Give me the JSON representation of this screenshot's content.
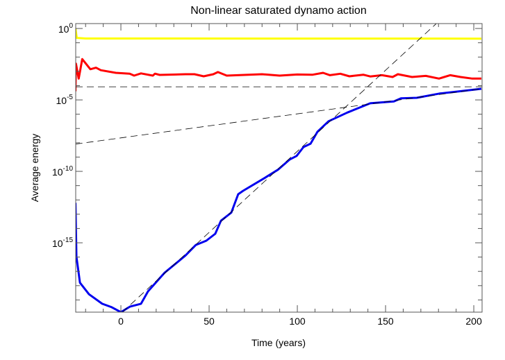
{
  "chart_data": {
    "type": "line",
    "title": "Non-linear saturated dynamo action",
    "xlabel": "Time (years)",
    "ylabel": "Average energy",
    "xlim": [
      -25.6,
      204.7
    ],
    "ylim": [
      1.4e-20,
      2.2
    ],
    "yscale": "log",
    "grid": false,
    "legend": "none",
    "x_ticks": [
      "0",
      "50",
      "100",
      "150",
      "200"
    ],
    "x_tick_values": [
      0,
      50,
      100,
      150,
      200
    ],
    "y_ticks": [
      {
        "value": 1,
        "base": "10",
        "exp": "0"
      },
      {
        "value": 1e-05,
        "base": "10",
        "exp": "-5"
      },
      {
        "value": 1e-10,
        "base": "10",
        "exp": "-10"
      },
      {
        "value": 1e-15,
        "base": "10",
        "exp": "-15"
      }
    ],
    "series": [
      {
        "color": "#ffff00",
        "style": "solid",
        "x": [
          -25.7,
          -25,
          -20,
          204.3
        ],
        "y": [
          1.0,
          0.22,
          0.2,
          0.195
        ]
      },
      {
        "color": "#ff0000",
        "style": "solid",
        "x": [
          -25.7,
          -25.5,
          -23.9,
          -21.9,
          -17.3,
          -14.1,
          -11.4,
          -2.9,
          5,
          7.5,
          11.4,
          18.1,
          19.3,
          22,
          36.6,
          41.7,
          46.9,
          52.4,
          55,
          60,
          70,
          80,
          90,
          100,
          108.7,
          114.6,
          118.5,
          124.4,
          129.5,
          137.4,
          141.3,
          148,
          154,
          157,
          165,
          172.8,
          180.3,
          186.6,
          192.5,
          199.2,
          204.3
        ],
        "y": [
          4e-05,
          0.0035,
          0.00031,
          0.0072,
          0.0014,
          0.0018,
          0.0012,
          0.00079,
          0.00069,
          0.0005,
          0.00072,
          0.0005,
          0.00069,
          0.00056,
          0.00063,
          0.00063,
          0.00045,
          0.00063,
          0.00089,
          0.0005,
          0.00056,
          0.00063,
          0.0005,
          0.0006,
          0.00058,
          0.00079,
          0.00054,
          0.00068,
          0.00045,
          0.00058,
          0.00044,
          0.00054,
          0.0004,
          0.00063,
          0.0004,
          0.00048,
          0.00031,
          0.00054,
          0.0004,
          0.00031,
          0.00031
        ]
      },
      {
        "color": "#0000ee",
        "style": "solid",
        "x": [
          -25.7,
          -25.2,
          -23.2,
          -18.1,
          -10.6,
          -5.5,
          0,
          5.1,
          11.4,
          15.4,
          24.8,
          31.1,
          36.6,
          42.5,
          48.4,
          53.5,
          56.7,
          62.6,
          66.5,
          69.3,
          81.1,
          89,
          95.7,
          99.6,
          103.5,
          107.5,
          111.4,
          117.7,
          128.3,
          141.3,
          154.7,
          158.7,
          167.7,
          180.7,
          190.2,
          204.3
        ],
        "y": [
          6.3e-13,
          1.1e-16,
          1.6e-18,
          2.5e-19,
          5.4e-20,
          3.2e-20,
          1.4e-20,
          3.4e-20,
          5.4e-20,
          4e-19,
          8.1e-18,
          3.5e-17,
          1.3e-16,
          7.1e-16,
          1.4e-15,
          4.3e-15,
          3.5e-14,
          1.3e-13,
          2.5e-12,
          4.4e-12,
          3.2e-11,
          1.3e-10,
          6.8e-10,
          1.2e-09,
          5e-09,
          8.7e-09,
          5.9e-08,
          3.2e-07,
          1.3e-06,
          5.8e-06,
          7.9e-06,
          1.3e-05,
          1.4e-05,
          2.8e-05,
          3.8e-05,
          6e-05
        ]
      },
      {
        "color": "#000000",
        "style": "dashed",
        "x": [
          -25.6,
          204.7
        ],
        "y": [
          8.3e-05,
          8.3e-05
        ]
      },
      {
        "color": "#000000",
        "style": "dashed",
        "x": [
          -25.7,
          204.3
        ],
        "y": [
          8.1e-09,
          6e-05
        ]
      },
      {
        "color": "#000000",
        "style": "dashed",
        "x": [
          0.8,
          178.6
        ],
        "y": [
          1.4e-20,
          2.1
        ]
      }
    ]
  }
}
